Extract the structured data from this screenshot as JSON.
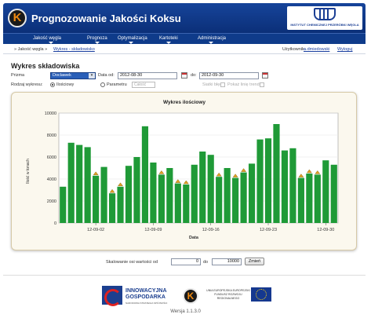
{
  "header": {
    "app_title": "Prognozowanie Jakości Koksu",
    "logo_letter": "K",
    "institute_name": "INSTYTUT CHEMICZNEJ PRZERÓBKI WĘGLA"
  },
  "nav": {
    "items": [
      "Jakość węgla",
      "Prognoza",
      "Optymalizacja",
      "Kartoteki",
      "Administracja"
    ]
  },
  "breadcrumb": {
    "root": "Jakość węgla",
    "current": "Wykres - składowisko",
    "user_label": "Użytkownik:",
    "user_name": "a.dmiedowski",
    "logout": "Wyloguj"
  },
  "form": {
    "section_title": "Wykres składowiska",
    "type_label": "Prizma",
    "type_value": "Doclawek",
    "date_from_label": "Data od:",
    "date_from": "2012-08-30",
    "date_to_label": "do:",
    "date_to": "2012-09-30",
    "kind_label": "Rodzaj wykresu:",
    "radio_quantity": "Ilościowy",
    "radio_parameter": "Parametru",
    "param_select": "Całość",
    "opt_show_values": "Siatki błędu",
    "opt_trend": "Pokaż linię trendu"
  },
  "chart_data": {
    "type": "bar",
    "title": "Wykres ilościowy",
    "xlabel": "Data",
    "ylabel": "Ilość w tonach",
    "ylim": [
      0,
      10000
    ],
    "yticks": [
      0,
      2000,
      4000,
      6000,
      8000,
      10000
    ],
    "xtick_labels": [
      "12-09-02",
      "12-09-09",
      "12-09-16",
      "12-09-23",
      "12-09-30"
    ],
    "xtick_indices": [
      4,
      11,
      18,
      25,
      32
    ],
    "bar_color": "#1f9a37",
    "marker_color": "#e0a020",
    "values": [
      3300,
      7300,
      7100,
      6900,
      4300,
      5100,
      2700,
      3300,
      5200,
      6000,
      8800,
      5500,
      4400,
      5000,
      3600,
      3500,
      5300,
      6500,
      6200,
      4200,
      5000,
      4100,
      4600,
      5400,
      7600,
      7700,
      9000,
      6600,
      6800,
      4100,
      4500,
      4400,
      5700,
      5300
    ],
    "markers": [
      0,
      0,
      0,
      0,
      1,
      0,
      1,
      1,
      0,
      0,
      0,
      0,
      1,
      0,
      1,
      1,
      0,
      0,
      0,
      1,
      0,
      1,
      1,
      0,
      0,
      0,
      0,
      0,
      0,
      1,
      1,
      1,
      0,
      0
    ]
  },
  "scale": {
    "label": "Skalowanie osi wartości od",
    "from": "0",
    "to_label": "do",
    "to": "10000",
    "apply_button": "Zmień"
  },
  "footer": {
    "ig_line1": "INNOWACYJNA",
    "ig_line2": "GOSPODARKA",
    "ig_sub": "NARODOWA STRATEGIA SPÓJNOŚCI",
    "eu_text": "UNIA EUROPEJSKA EUROPEJSKI FUNDUSZ ROZWOJU REGIONALNEGO",
    "version": "Wersja 1.1.3.0"
  }
}
